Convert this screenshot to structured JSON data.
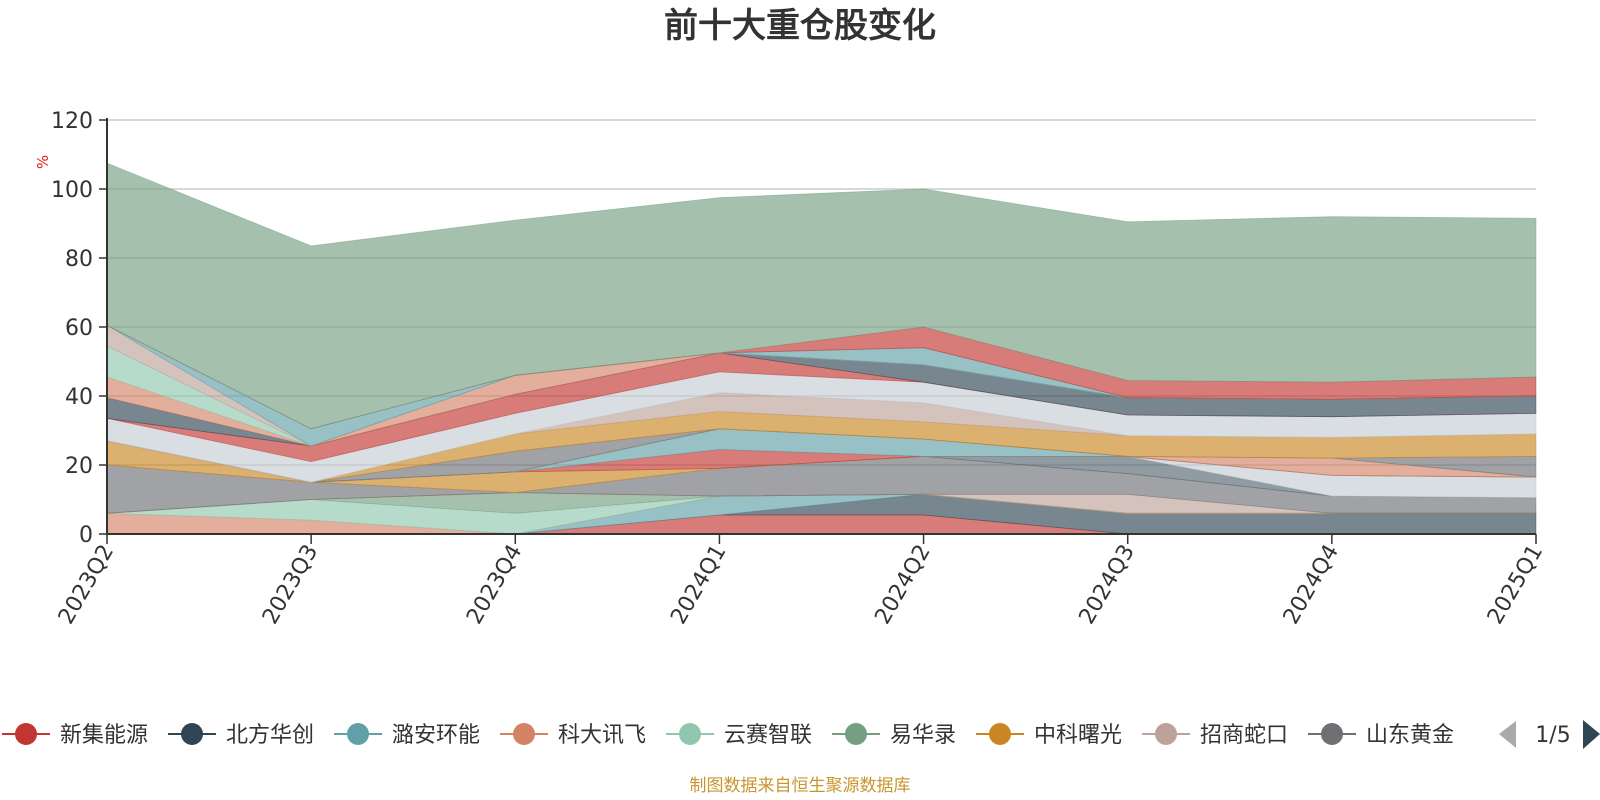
{
  "chart_data": {
    "type": "area",
    "title": "前十大重仓股变化",
    "ylabel": "%",
    "ylim": [
      0,
      120
    ],
    "yticks": [
      "0",
      "20",
      "40",
      "60",
      "80",
      "100",
      "120"
    ],
    "categories": [
      "2023Q2",
      "2023Q3",
      "2023Q4",
      "2024Q1",
      "2024Q2",
      "2024Q3",
      "2024Q4",
      "2025Q1"
    ],
    "grid": true,
    "legend_position": "bottom",
    "legend_page": "1/5",
    "series": [
      {
        "name": "新集能源",
        "color": "#c23531",
        "values": [
          0,
          0,
          0,
          5.5,
          5.5,
          0,
          0,
          0
        ]
      },
      {
        "name": "北方华创",
        "color": "#2f4554",
        "values": [
          0,
          0,
          0,
          0,
          6,
          6,
          6,
          6
        ]
      },
      {
        "name": "潞安环能",
        "color": "#61a0a8",
        "values": [
          0,
          0,
          0,
          5.5,
          0,
          0,
          0,
          0
        ]
      },
      {
        "name": "科大讯飞",
        "color": "#d48265",
        "values": [
          6,
          4,
          0,
          0,
          0,
          0,
          0,
          0
        ]
      },
      {
        "name": "云赛智联",
        "color": "#91c7ae",
        "values": [
          0,
          6,
          6,
          0,
          0,
          0,
          0,
          0
        ]
      },
      {
        "name": "易华录",
        "color": "#749f83",
        "values": [
          0,
          0,
          6,
          0,
          0,
          0,
          0,
          0
        ]
      },
      {
        "name": "中科曙光",
        "color": "#ca8622",
        "values": [
          0,
          0,
          0,
          0,
          0,
          0,
          0,
          0
        ]
      },
      {
        "name": "招商蛇口",
        "color": "#bda29a",
        "values": [
          0,
          0,
          0,
          0,
          0,
          5.5,
          0,
          0
        ]
      },
      {
        "name": "山东黄金",
        "color": "#6e7074",
        "values": [
          14,
          5,
          0,
          8,
          11,
          6,
          5,
          4.5
        ]
      },
      {
        "name": "",
        "color": "#546570",
        "values": [
          0,
          0,
          0,
          0,
          0,
          5,
          0,
          0
        ]
      },
      {
        "name": "",
        "color": "#c4ccd3",
        "values": [
          0,
          0,
          0,
          0,
          0,
          0,
          6,
          6
        ]
      },
      {
        "name": "",
        "color": "#ca8622",
        "values": [
          7,
          0,
          6,
          0,
          0,
          0,
          0,
          0
        ]
      },
      {
        "name": "",
        "color": "#c23531",
        "values": [
          0,
          0,
          0,
          5.5,
          0,
          0,
          0,
          0
        ]
      },
      {
        "name": "",
        "color": "#61a0a8",
        "values": [
          0,
          0,
          0,
          6,
          5,
          0,
          0,
          0
        ]
      },
      {
        "name": "",
        "color": "#d48265",
        "values": [
          0,
          0,
          0,
          0,
          0,
          0,
          5,
          0
        ]
      },
      {
        "name": "",
        "color": "#91c7ae",
        "values": [
          0,
          0,
          0,
          0,
          0,
          0,
          0,
          0
        ]
      },
      {
        "name": "",
        "color": "#6e7074",
        "values": [
          0,
          0,
          6,
          0,
          0,
          0,
          0,
          6
        ]
      },
      {
        "name": "",
        "color": "#ca8622",
        "values": [
          0,
          0,
          5,
          5,
          5,
          6,
          6,
          6.5
        ]
      },
      {
        "name": "",
        "color": "#bda29a",
        "values": [
          0,
          0,
          0,
          5.5,
          5.5,
          0,
          0,
          0
        ]
      },
      {
        "name": "",
        "color": "#c4ccd3",
        "values": [
          6.5,
          6,
          6,
          6,
          6,
          6,
          6,
          6
        ]
      },
      {
        "name": "",
        "color": "#c23531",
        "values": [
          0,
          4.5,
          5.5,
          5.5,
          0,
          0,
          0,
          0
        ]
      },
      {
        "name": "",
        "color": "#2f4554",
        "values": [
          6,
          0,
          0,
          0,
          5,
          5,
          5,
          5
        ]
      },
      {
        "name": "",
        "color": "#d48265",
        "values": [
          6,
          0,
          5.5,
          0,
          0,
          0,
          0,
          0
        ]
      },
      {
        "name": "",
        "color": "#91c7ae",
        "values": [
          9,
          0,
          0,
          0,
          0,
          0,
          0,
          0
        ]
      },
      {
        "name": "",
        "color": "#bda29a",
        "values": [
          6,
          0,
          0,
          0,
          0,
          0,
          0,
          0
        ]
      },
      {
        "name": "",
        "color": "#61a0a8",
        "values": [
          0,
          5,
          0,
          0,
          5,
          0,
          0,
          0
        ]
      },
      {
        "name": "",
        "color": "#c23531",
        "values": [
          0,
          0,
          0,
          0,
          6,
          5,
          5,
          5.5
        ]
      },
      {
        "name": "",
        "color": "#749f83",
        "values": [
          47,
          53,
          45,
          45,
          40,
          46,
          48,
          46
        ]
      }
    ]
  },
  "footer": {
    "source_text": "制图数据来自恒生聚源数据库"
  }
}
